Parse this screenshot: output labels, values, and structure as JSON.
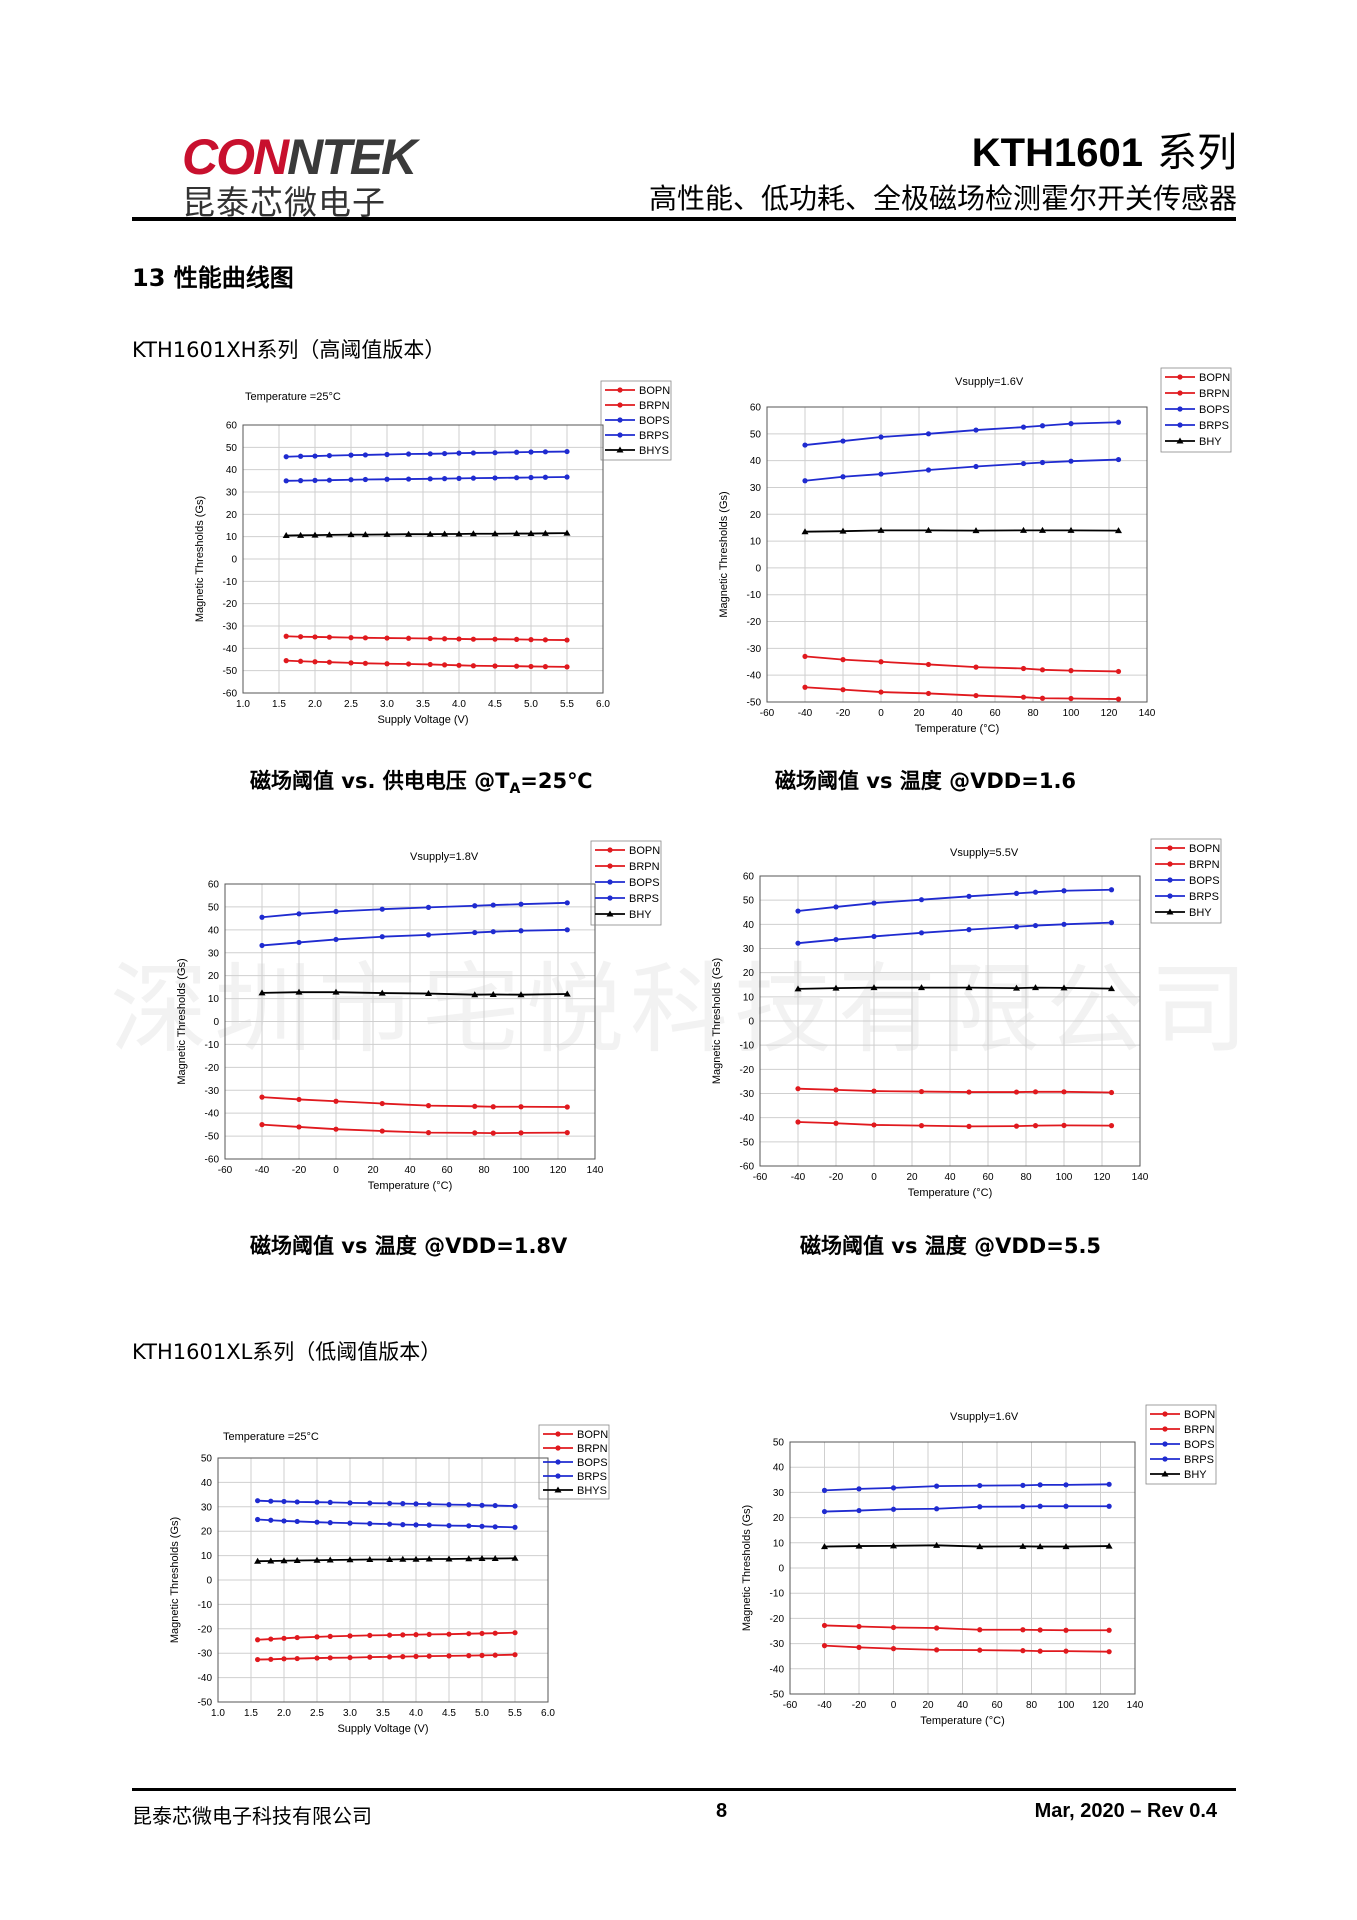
{
  "header": {
    "logo_en_red": "CON",
    "logo_en_gray": "NTEK",
    "logo_cn": "昆泰芯微电子",
    "title": "KTH1601",
    "title_series": "系列",
    "subtitle": "高性能、低功耗、全极磁场检测霍尔开关传感器"
  },
  "section": {
    "title": "13 性能曲线图",
    "series_xh": "KTH1601XH系列（高阈值版本）",
    "series_xl": "KTH1601XL系列（低阈值版本）"
  },
  "captions": {
    "c1_pre": "磁场阈值 vs. 供电电压 @T",
    "c1_sub": "A",
    "c1_post": "=25℃",
    "c2": "磁场阈值  vs  温度  @VDD=1.6",
    "c3": "磁场阈值  vs  温度  @VDD=1.8V",
    "c4": "磁场阈值  vs  温度  @VDD=5.5"
  },
  "watermark": "深圳市宅悦科技有限公司",
  "footer": {
    "company": "昆泰芯微电子科技有限公司",
    "page": "8",
    "revision": "Mar, 2020 – Rev 0.4"
  },
  "colors": {
    "red": "#e0191e",
    "blue": "#1f2bd0",
    "black": "#000000",
    "logo_red": "#c8102e"
  },
  "chart_data": [
    {
      "id": "xh-voltage",
      "type": "line",
      "annotation": "Temperature =25°C",
      "xlabel": "Supply Voltage (V)",
      "ylabel": "Magnetic Thresholds (Gs)",
      "xlim": [
        1.0,
        6.0
      ],
      "ylim": [
        -60,
        60
      ],
      "xticks": [
        1.0,
        1.5,
        2.0,
        2.5,
        3.0,
        3.5,
        4.0,
        4.5,
        5.0,
        5.5,
        6.0
      ],
      "yticks": [
        -60,
        -50,
        -40,
        -30,
        -20,
        -10,
        0,
        10,
        20,
        30,
        40,
        50,
        60
      ],
      "x_decimals": 1,
      "x": [
        1.6,
        1.8,
        2.0,
        2.2,
        2.5,
        2.7,
        3.0,
        3.3,
        3.6,
        3.8,
        4.0,
        4.2,
        4.5,
        4.8,
        5.0,
        5.2,
        5.5
      ],
      "series": [
        {
          "name": "BOPN",
          "color": "red",
          "values": [
            -34.6,
            -34.8,
            -34.9,
            -35.0,
            -35.2,
            -35.3,
            -35.4,
            -35.5,
            -35.6,
            -35.7,
            -35.8,
            -35.9,
            -35.9,
            -36.0,
            -36.1,
            -36.2,
            -36.3
          ]
        },
        {
          "name": "BRPN",
          "color": "red",
          "values": [
            -45.5,
            -45.8,
            -46.0,
            -46.2,
            -46.5,
            -46.7,
            -46.9,
            -47.0,
            -47.2,
            -47.4,
            -47.6,
            -47.8,
            -47.9,
            -48.0,
            -48.1,
            -48.2,
            -48.3
          ]
        },
        {
          "name": "BOPS",
          "color": "blue",
          "values": [
            45.8,
            46.0,
            46.1,
            46.3,
            46.5,
            46.6,
            46.8,
            47.0,
            47.1,
            47.2,
            47.4,
            47.5,
            47.6,
            47.8,
            47.9,
            48.0,
            48.1
          ]
        },
        {
          "name": "BRPS",
          "color": "blue",
          "values": [
            35.0,
            35.1,
            35.2,
            35.3,
            35.5,
            35.6,
            35.7,
            35.8,
            35.9,
            36.0,
            36.1,
            36.2,
            36.3,
            36.4,
            36.5,
            36.6,
            36.7
          ]
        },
        {
          "name": "BHYS",
          "color": "black",
          "values": [
            10.5,
            10.6,
            10.7,
            10.8,
            10.9,
            10.9,
            11.0,
            11.1,
            11.1,
            11.2,
            11.2,
            11.3,
            11.3,
            11.4,
            11.4,
            11.5,
            11.6
          ]
        }
      ]
    },
    {
      "id": "xh-temp-1v6",
      "type": "line",
      "annotation": "Vsupply=1.6V",
      "xlabel": "Temperature (°C)",
      "ylabel": "Magnetic Thresholds (Gs)",
      "xlim": [
        -60,
        140
      ],
      "ylim": [
        -50,
        60
      ],
      "xticks": [
        -60,
        -40,
        -20,
        0,
        20,
        40,
        60,
        80,
        100,
        120,
        140
      ],
      "yticks": [
        -50,
        -40,
        -30,
        -20,
        -10,
        0,
        10,
        20,
        30,
        40,
        50,
        60
      ],
      "x_decimals": 0,
      "x": [
        -40,
        -20,
        0,
        25,
        50,
        75,
        85,
        100,
        125
      ],
      "series": [
        {
          "name": "BOPN",
          "color": "red",
          "values": [
            -33.0,
            -34.2,
            -35.0,
            -36.0,
            -37.0,
            -37.5,
            -38.0,
            -38.3,
            -38.6
          ]
        },
        {
          "name": "BRPN",
          "color": "red",
          "values": [
            -44.5,
            -45.4,
            -46.3,
            -46.8,
            -47.6,
            -48.2,
            -48.6,
            -48.7,
            -48.9
          ]
        },
        {
          "name": "BOPS",
          "color": "blue",
          "values": [
            45.8,
            47.3,
            48.8,
            50.0,
            51.4,
            52.5,
            53.0,
            53.8,
            54.3
          ]
        },
        {
          "name": "BRPS",
          "color": "blue",
          "values": [
            32.5,
            34.0,
            35.0,
            36.5,
            37.8,
            38.9,
            39.3,
            39.8,
            40.4
          ]
        },
        {
          "name": "BHY",
          "color": "black",
          "values": [
            13.5,
            13.7,
            14.0,
            14.0,
            13.9,
            14.0,
            14.0,
            14.0,
            13.9
          ]
        }
      ]
    },
    {
      "id": "xh-temp-1v8",
      "type": "line",
      "annotation": "Vsupply=1.8V",
      "xlabel": "Temperature (°C)",
      "ylabel": "Magnetic Thresholds (Gs)",
      "xlim": [
        -60,
        140
      ],
      "ylim": [
        -60,
        60
      ],
      "xticks": [
        -60,
        -40,
        -20,
        0,
        20,
        40,
        60,
        80,
        100,
        120,
        140
      ],
      "yticks": [
        -60,
        -50,
        -40,
        -30,
        -20,
        -10,
        0,
        10,
        20,
        30,
        40,
        50,
        60
      ],
      "x_decimals": 0,
      "x": [
        -40,
        -20,
        0,
        25,
        50,
        75,
        85,
        100,
        125
      ],
      "series": [
        {
          "name": "BOPN",
          "color": "red",
          "values": [
            -33.0,
            -34.0,
            -34.8,
            -35.8,
            -36.7,
            -37.0,
            -37.2,
            -37.2,
            -37.3
          ]
        },
        {
          "name": "BRPN",
          "color": "red",
          "values": [
            -45.0,
            -46.0,
            -47.0,
            -47.8,
            -48.5,
            -48.6,
            -48.7,
            -48.6,
            -48.5
          ]
        },
        {
          "name": "BOPS",
          "color": "blue",
          "values": [
            45.5,
            47.0,
            48.0,
            49.0,
            49.8,
            50.5,
            50.8,
            51.2,
            51.8
          ]
        },
        {
          "name": "BRPS",
          "color": "blue",
          "values": [
            33.2,
            34.5,
            35.8,
            37.0,
            37.8,
            38.8,
            39.2,
            39.6,
            40.0
          ]
        },
        {
          "name": "BHY",
          "color": "black",
          "values": [
            12.5,
            12.8,
            12.8,
            12.4,
            12.2,
            11.7,
            11.8,
            11.7,
            12.0
          ]
        }
      ]
    },
    {
      "id": "xh-temp-5v5",
      "type": "line",
      "annotation": "Vsupply=5.5V",
      "xlabel": "Temperature (°C)",
      "ylabel": "Magnetic Thresholds (Gs)",
      "xlim": [
        -60,
        140
      ],
      "ylim": [
        -60,
        60
      ],
      "xticks": [
        -60,
        -40,
        -20,
        0,
        20,
        40,
        60,
        80,
        100,
        120,
        140
      ],
      "yticks": [
        -60,
        -50,
        -40,
        -30,
        -20,
        -10,
        0,
        10,
        20,
        30,
        40,
        50,
        60
      ],
      "x_decimals": 0,
      "x": [
        -40,
        -20,
        0,
        25,
        50,
        75,
        85,
        100,
        125
      ],
      "series": [
        {
          "name": "BOPN",
          "color": "red",
          "values": [
            -28.0,
            -28.5,
            -29.0,
            -29.2,
            -29.4,
            -29.4,
            -29.3,
            -29.3,
            -29.6
          ]
        },
        {
          "name": "BRPN",
          "color": "red",
          "values": [
            -41.8,
            -42.3,
            -43.0,
            -43.3,
            -43.6,
            -43.5,
            -43.3,
            -43.2,
            -43.3
          ]
        },
        {
          "name": "BOPS",
          "color": "blue",
          "values": [
            45.5,
            47.2,
            48.8,
            50.2,
            51.6,
            52.8,
            53.3,
            53.9,
            54.3
          ]
        },
        {
          "name": "BRPS",
          "color": "blue",
          "values": [
            32.2,
            33.7,
            35.0,
            36.5,
            37.8,
            39.0,
            39.5,
            40.0,
            40.7
          ]
        },
        {
          "name": "BHY",
          "color": "black",
          "values": [
            13.3,
            13.6,
            13.8,
            13.8,
            13.8,
            13.6,
            13.8,
            13.7,
            13.4
          ]
        }
      ]
    },
    {
      "id": "xl-voltage",
      "type": "line",
      "annotation": "Temperature =25°C",
      "xlabel": "Supply Voltage (V)",
      "ylabel": "Magnetic Thresholds (Gs)",
      "xlim": [
        1.0,
        6.0
      ],
      "ylim": [
        -50,
        50
      ],
      "xticks": [
        1.0,
        1.5,
        2.0,
        2.5,
        3.0,
        3.5,
        4.0,
        4.5,
        5.0,
        5.5,
        6.0
      ],
      "yticks": [
        -50,
        -40,
        -30,
        -20,
        -10,
        0,
        10,
        20,
        30,
        40,
        50
      ],
      "x_decimals": 1,
      "x": [
        1.6,
        1.8,
        2.0,
        2.2,
        2.5,
        2.7,
        3.0,
        3.3,
        3.6,
        3.8,
        4.0,
        4.2,
        4.5,
        4.8,
        5.0,
        5.2,
        5.5
      ],
      "series": [
        {
          "name": "BOPN",
          "color": "red",
          "values": [
            -24.5,
            -24.2,
            -23.9,
            -23.6,
            -23.3,
            -23.1,
            -22.9,
            -22.7,
            -22.6,
            -22.5,
            -22.4,
            -22.3,
            -22.2,
            -22.0,
            -21.9,
            -21.8,
            -21.6
          ]
        },
        {
          "name": "BRPN",
          "color": "red",
          "values": [
            -32.6,
            -32.5,
            -32.3,
            -32.2,
            -32.0,
            -31.9,
            -31.8,
            -31.6,
            -31.5,
            -31.4,
            -31.3,
            -31.2,
            -31.1,
            -31.0,
            -30.9,
            -30.8,
            -30.6
          ]
        },
        {
          "name": "BOPS",
          "color": "blue",
          "values": [
            32.5,
            32.3,
            32.2,
            32.0,
            31.9,
            31.8,
            31.6,
            31.5,
            31.4,
            31.3,
            31.2,
            31.1,
            30.9,
            30.8,
            30.6,
            30.5,
            30.3
          ]
        },
        {
          "name": "BRPS",
          "color": "blue",
          "values": [
            24.8,
            24.5,
            24.2,
            24.0,
            23.7,
            23.5,
            23.3,
            23.1,
            22.9,
            22.7,
            22.6,
            22.5,
            22.3,
            22.2,
            22.0,
            21.8,
            21.6
          ]
        },
        {
          "name": "BHYS",
          "color": "black",
          "values": [
            7.7,
            7.8,
            7.9,
            8.0,
            8.1,
            8.2,
            8.3,
            8.4,
            8.4,
            8.5,
            8.5,
            8.6,
            8.6,
            8.7,
            8.8,
            8.8,
            8.9
          ]
        }
      ]
    },
    {
      "id": "xl-temp-1v6",
      "type": "line",
      "annotation": "Vsupply=1.6V",
      "xlabel": "Temperature (°C)",
      "ylabel": "Magnetic Thresholds (Gs)",
      "xlim": [
        -60,
        140
      ],
      "ylim": [
        -50,
        50
      ],
      "xticks": [
        -60,
        -40,
        -20,
        0,
        20,
        40,
        60,
        80,
        100,
        120,
        140
      ],
      "yticks": [
        -50,
        -40,
        -30,
        -20,
        -10,
        0,
        10,
        20,
        30,
        40,
        50
      ],
      "x_decimals": 0,
      "x": [
        -40,
        -20,
        0,
        25,
        50,
        75,
        85,
        100,
        125
      ],
      "series": [
        {
          "name": "BOPN",
          "color": "red",
          "values": [
            -22.8,
            -23.2,
            -23.6,
            -23.8,
            -24.5,
            -24.5,
            -24.6,
            -24.7,
            -24.7
          ]
        },
        {
          "name": "BRPN",
          "color": "red",
          "values": [
            -30.8,
            -31.5,
            -32.0,
            -32.5,
            -32.6,
            -32.8,
            -33.0,
            -33.0,
            -33.2
          ]
        },
        {
          "name": "BOPS",
          "color": "blue",
          "values": [
            30.8,
            31.4,
            31.8,
            32.5,
            32.7,
            32.8,
            33.0,
            33.0,
            33.2
          ]
        },
        {
          "name": "BRPS",
          "color": "blue",
          "values": [
            22.4,
            22.8,
            23.3,
            23.5,
            24.3,
            24.4,
            24.5,
            24.5,
            24.5
          ]
        },
        {
          "name": "BHY",
          "color": "black",
          "values": [
            8.5,
            8.7,
            8.8,
            9.0,
            8.5,
            8.6,
            8.5,
            8.5,
            8.7
          ]
        }
      ]
    }
  ]
}
